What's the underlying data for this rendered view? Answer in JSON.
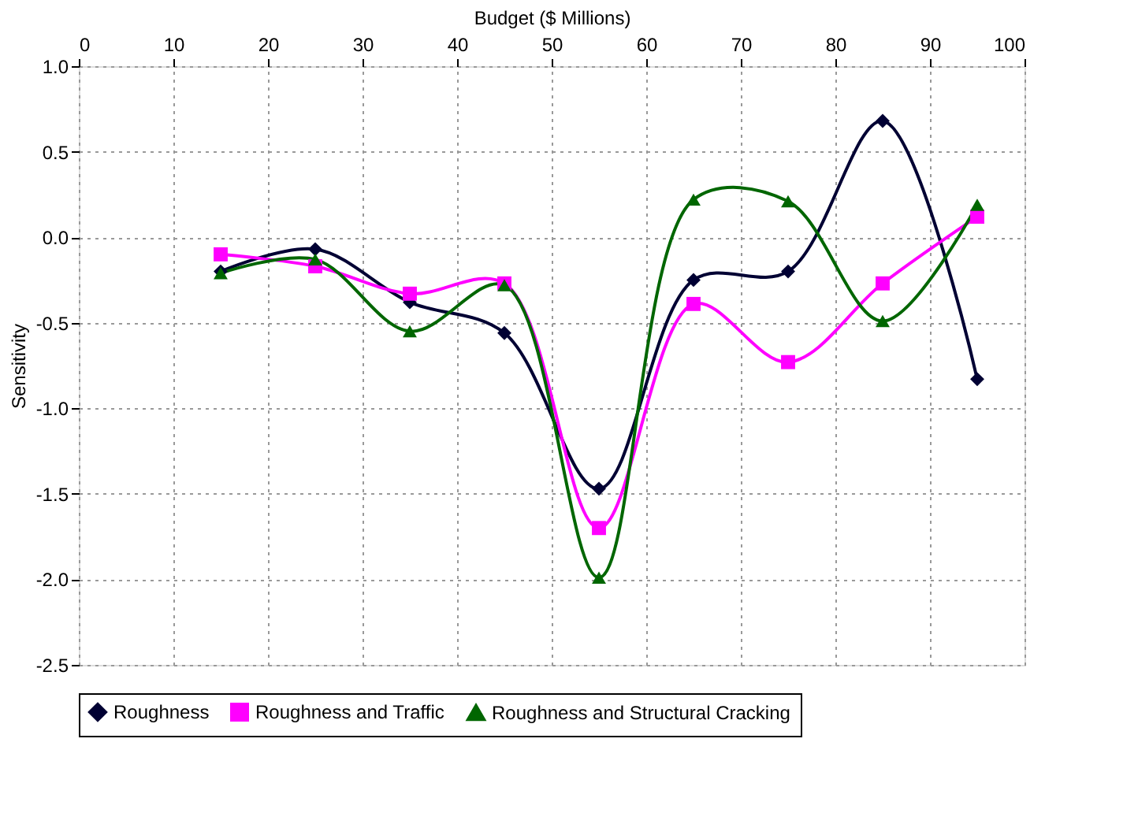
{
  "chart_data": {
    "type": "line",
    "xlabel": "Budget ($ Millions)",
    "ylabel": "Sensitivity",
    "x": [
      15,
      25,
      35,
      45,
      55,
      65,
      75,
      85,
      95
    ],
    "xlim": [
      0,
      100
    ],
    "xticks": [
      0,
      10,
      20,
      30,
      40,
      50,
      60,
      70,
      80,
      90,
      100
    ],
    "ylim": [
      -2.5,
      1.0
    ],
    "yticks": [
      -2.5,
      {
        "value": -2,
        "label": "-2.0"
      },
      -1.5,
      {
        "value": -1,
        "label": "-1.0"
      },
      -0.5,
      {
        "value": 0,
        "label": "0.0"
      },
      0.5,
      {
        "value": 1,
        "label": "1.0"
      }
    ],
    "grid": true,
    "legend": "bottom",
    "series": [
      {
        "name": "Roughness",
        "color": "#000033",
        "marker": "diamond",
        "values": [
          -0.2,
          -0.07,
          -0.38,
          -0.56,
          -1.47,
          -0.25,
          -0.2,
          0.68,
          -0.83
        ]
      },
      {
        "name": "Roughness and Traffic",
        "color": "#ff00ff",
        "marker": "square",
        "values": [
          -0.1,
          -0.17,
          -0.33,
          -0.27,
          -1.7,
          -0.39,
          -0.73,
          -0.27,
          0.12
        ]
      },
      {
        "name": "Roughness and Structural Cracking",
        "color": "#006600",
        "marker": "triangle",
        "values": [
          -0.21,
          -0.13,
          -0.55,
          -0.28,
          -1.99,
          0.22,
          0.21,
          -0.49,
          0.19
        ]
      }
    ]
  }
}
